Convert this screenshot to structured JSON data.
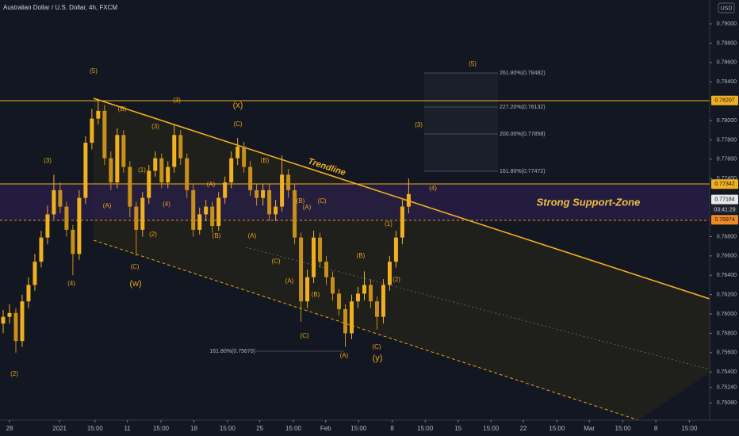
{
  "chart_data": {
    "type": "candlestick",
    "title": "Australian Dollar / U.S. Dollar, 4h, FXCM",
    "currency": "USD",
    "up_color": "#f0b020",
    "down_color": "#c8901a",
    "open": [
      0.759,
      0.7597,
      0.7601,
      0.7572,
      0.7613,
      0.763,
      0.7654,
      0.7679,
      0.7703,
      0.7728,
      0.7711,
      0.7687,
      0.7662,
      0.772,
      0.7777,
      0.7802,
      0.781,
      0.7761,
      0.7736,
      0.7785,
      0.7752,
      0.7711,
      0.7687,
      0.772,
      0.7748,
      0.7761,
      0.7736,
      0.7752,
      0.7785,
      0.7761,
      0.7728,
      0.7687,
      0.7703,
      0.7711,
      0.7691,
      0.772,
      0.7736,
      0.7761,
      0.7773,
      0.7752,
      0.7728,
      0.772,
      0.7728,
      0.7703,
      0.7711,
      0.7744,
      0.7728,
      0.7679,
      0.7613,
      0.7638,
      0.7679,
      0.7654,
      0.7638,
      0.7621,
      0.7605,
      0.758,
      0.7613,
      0.7621,
      0.763,
      0.7613,
      0.7597,
      0.763,
      0.7654,
      0.7679,
      0.7711
    ],
    "high": [
      0.7604,
      0.761,
      0.7606,
      0.762,
      0.7638,
      0.7662,
      0.7686,
      0.7712,
      0.7744,
      0.7736,
      0.7716,
      0.7692,
      0.7728,
      0.7784,
      0.7812,
      0.7822,
      0.7816,
      0.7768,
      0.7792,
      0.779,
      0.7758,
      0.7716,
      0.7726,
      0.7754,
      0.7768,
      0.7766,
      0.7758,
      0.7796,
      0.779,
      0.7766,
      0.7734,
      0.771,
      0.7718,
      0.7716,
      0.7726,
      0.7742,
      0.7768,
      0.7782,
      0.7778,
      0.7758,
      0.7734,
      0.7734,
      0.7734,
      0.7718,
      0.7764,
      0.775,
      0.7734,
      0.7684,
      0.7646,
      0.7686,
      0.7684,
      0.766,
      0.7644,
      0.7626,
      0.761,
      0.762,
      0.7628,
      0.7644,
      0.7636,
      0.7618,
      0.7636,
      0.766,
      0.7686,
      0.7718,
      0.774
    ],
    "low": [
      0.758,
      0.759,
      0.756,
      0.7566,
      0.7606,
      0.7624,
      0.7648,
      0.7672,
      0.7698,
      0.7704,
      0.768,
      0.764,
      0.7656,
      0.7714,
      0.777,
      0.7796,
      0.7754,
      0.7728,
      0.773,
      0.7746,
      0.77,
      0.766,
      0.768,
      0.7714,
      0.7742,
      0.773,
      0.773,
      0.7746,
      0.7754,
      0.772,
      0.768,
      0.7682,
      0.7696,
      0.7684,
      0.7686,
      0.7714,
      0.773,
      0.7754,
      0.7746,
      0.7722,
      0.7712,
      0.7712,
      0.7696,
      0.7696,
      0.7706,
      0.772,
      0.7672,
      0.7592,
      0.7606,
      0.7632,
      0.7648,
      0.763,
      0.7614,
      0.7598,
      0.7566,
      0.7574,
      0.7606,
      0.7614,
      0.7606,
      0.7584,
      0.759,
      0.7624,
      0.7648,
      0.7672,
      0.7704
    ],
    "close": [
      0.7597,
      0.7601,
      0.7572,
      0.7613,
      0.763,
      0.7654,
      0.7679,
      0.7703,
      0.7728,
      0.7711,
      0.7687,
      0.7662,
      0.772,
      0.7777,
      0.7802,
      0.781,
      0.7761,
      0.7736,
      0.7785,
      0.7752,
      0.7711,
      0.7687,
      0.772,
      0.7748,
      0.7761,
      0.7736,
      0.7752,
      0.7785,
      0.7761,
      0.7728,
      0.7687,
      0.7703,
      0.7711,
      0.7691,
      0.772,
      0.7736,
      0.7761,
      0.7773,
      0.7752,
      0.7728,
      0.772,
      0.7728,
      0.7703,
      0.7711,
      0.7744,
      0.7728,
      0.7679,
      0.7613,
      0.7638,
      0.7679,
      0.7654,
      0.7638,
      0.7621,
      0.7605,
      0.758,
      0.7613,
      0.7621,
      0.763,
      0.7613,
      0.7597,
      0.763,
      0.7654,
      0.7679,
      0.7711,
      0.7724
    ],
    "xlim": [
      0,
      112
    ],
    "xticks": [
      {
        "value": 1.5,
        "label": "28"
      },
      {
        "value": 9.4,
        "label": "2021"
      },
      {
        "value": 15,
        "label": "15:00"
      },
      {
        "value": 20.1,
        "label": "11"
      },
      {
        "value": 25.4,
        "label": "15:00"
      },
      {
        "value": 30.6,
        "label": "18"
      },
      {
        "value": 35.9,
        "label": "15:00"
      },
      {
        "value": 41,
        "label": "25"
      },
      {
        "value": 46.3,
        "label": "15:00"
      },
      {
        "value": 51.4,
        "label": "Feb"
      },
      {
        "value": 56.6,
        "label": "15:00"
      },
      {
        "value": 61.9,
        "label": "8"
      },
      {
        "value": 67.1,
        "label": "15:00"
      },
      {
        "value": 72.3,
        "label": "15"
      },
      {
        "value": 77.5,
        "label": "15:00"
      },
      {
        "value": 82.6,
        "label": "22"
      },
      {
        "value": 87.9,
        "label": "15:00"
      },
      {
        "value": 93,
        "label": "Mar"
      },
      {
        "value": 98.3,
        "label": "15:00"
      },
      {
        "value": 103.5,
        "label": "8"
      },
      {
        "value": 108.8,
        "label": "15:00"
      }
    ],
    "ylim": [
      0.74902,
      0.79246
    ],
    "yticks": [
      {
        "value": 0.7508,
        "label": "0.75080"
      },
      {
        "value": 0.7524,
        "label": "0.75240"
      },
      {
        "value": 0.754,
        "label": "0.75400"
      },
      {
        "value": 0.756,
        "label": "0.75600"
      },
      {
        "value": 0.758,
        "label": "0.75800"
      },
      {
        "value": 0.76,
        "label": "0.76000"
      },
      {
        "value": 0.762,
        "label": "0.76200"
      },
      {
        "value": 0.764,
        "label": "0.76400"
      },
      {
        "value": 0.766,
        "label": "0.76600"
      },
      {
        "value": 0.768,
        "label": "0.76800"
      },
      {
        "value": 0.774,
        "label": "0.77400"
      },
      {
        "value": 0.776,
        "label": "0.77600"
      },
      {
        "value": 0.778,
        "label": "0.77800"
      },
      {
        "value": 0.78,
        "label": "0.78000"
      },
      {
        "value": 0.784,
        "label": "0.78400"
      },
      {
        "value": 0.786,
        "label": "0.78600"
      },
      {
        "value": 0.788,
        "label": "0.78800"
      },
      {
        "value": 0.79,
        "label": "0.79000"
      }
    ],
    "price_markers": [
      {
        "value": 0.78207,
        "label": "0.78207",
        "color": "#f0b020"
      },
      {
        "value": 0.77342,
        "label": "0.77342",
        "color": "#f0b020"
      },
      {
        "value": 0.77184,
        "label": "0.77184",
        "color": "#e8e8e8"
      },
      {
        "value": 0.76974,
        "label": "0.76974",
        "color": "#f08a24"
      }
    ],
    "countdown": "03:41:29",
    "annotations": [
      "(5)",
      "(3)",
      "(4)",
      "(2)",
      "(B)",
      "(3)",
      "(1)",
      "(4)",
      "(2)",
      "(A)",
      "(C)",
      "(w)",
      "(3)",
      "(x)",
      "(C)",
      "(A)",
      "(B)",
      "(A)",
      "(B)",
      "(C)",
      "(B)",
      "(A)",
      "(C)",
      "(A)",
      "(B)",
      "(C)",
      "(A)",
      "(B)",
      "(C)",
      "(y)",
      "(2)",
      "(1)",
      "(4)",
      "(3)",
      "(5)"
    ],
    "fib_labels": [
      "261.80%(0.78482)",
      "227.20%(0.78132)",
      "200.00%(0.77858)",
      "161.80%(0.77472)",
      "161.80%(0.75670)"
    ],
    "trendline_label": "Trendline",
    "zone_label": "Strong Support-Zone"
  }
}
